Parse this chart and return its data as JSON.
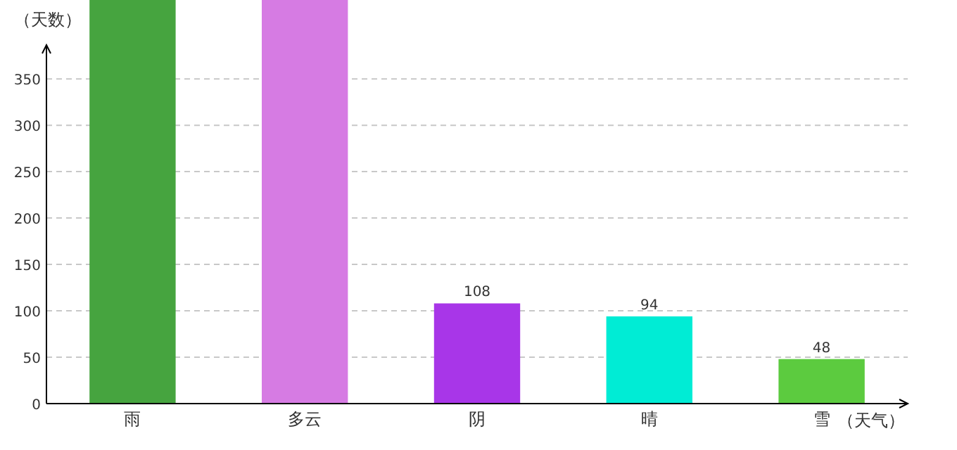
{
  "chart_data": {
    "type": "bar",
    "xlabel": "（天气）",
    "ylabel": "（天数）",
    "categories": [
      "雨",
      "多云",
      "阴",
      "晴",
      "雪"
    ],
    "values": [
      435,
      435,
      108,
      94,
      48
    ],
    "value_labels": [
      null,
      null,
      "108",
      "94",
      "48"
    ],
    "colors": [
      "#46a43f",
      "#d67be3",
      "#a836e8",
      "#00ecd5",
      "#5ccb3f"
    ],
    "ylim": [
      0,
      435
    ],
    "yticks": [
      0,
      50,
      100,
      150,
      200,
      250,
      300,
      350
    ],
    "grid": "y"
  }
}
